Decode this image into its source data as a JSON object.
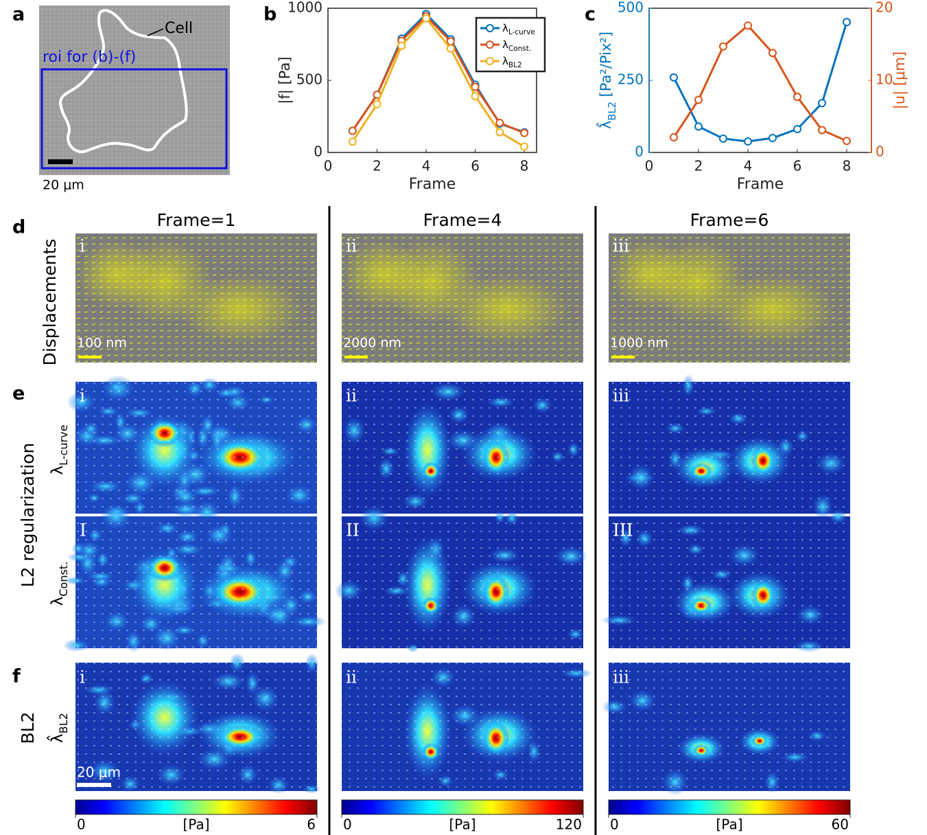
{
  "panel_labels": [
    "a",
    "b",
    "c",
    "d",
    "e",
    "f"
  ],
  "panel_a": {
    "annotation": "Cell",
    "roi_label": "roi for (b)-(f)",
    "scale_bar": "20 μm"
  },
  "chart_data": [
    {
      "type": "line",
      "x": [
        1,
        2,
        3,
        4,
        5,
        6,
        7,
        8
      ],
      "xlabel": "Frame",
      "ylabel": "|f| [Pa]",
      "xlim": [
        0,
        8.5
      ],
      "xticks": [
        0,
        2,
        4,
        6,
        8
      ],
      "ylim": [
        0,
        1000
      ],
      "yticks": [
        0,
        500,
        1000
      ],
      "legend": "upper right",
      "series": [
        {
          "name": "λL-curve",
          "color": "#0072bd",
          "values": [
            150,
            400,
            790,
            960,
            785,
            470,
            200,
            140
          ]
        },
        {
          "name": "λConst.",
          "color": "#d95319",
          "values": [
            150,
            400,
            775,
            945,
            770,
            455,
            205,
            135
          ]
        },
        {
          "name": "λBL2",
          "color": "#edb120",
          "values": [
            75,
            335,
            740,
            930,
            720,
            390,
            140,
            40
          ]
        }
      ]
    },
    {
      "type": "line",
      "x": [
        1,
        2,
        3,
        4,
        5,
        6,
        7,
        8
      ],
      "xlabel": "Frame",
      "ylabel": "λ̂BL2 [Pa²/Pix²]",
      "y2label": "|u| [μm]",
      "xlim": [
        0,
        9
      ],
      "xticks": [
        0,
        2,
        4,
        6,
        8
      ],
      "ylim": [
        0,
        500
      ],
      "yticks": [
        0,
        250,
        500
      ],
      "y2lim": [
        0,
        20
      ],
      "y2ticks": [
        0,
        10,
        20
      ],
      "series": [
        {
          "color": "#0072bd",
          "values": [
            260,
            90,
            48,
            38,
            50,
            81,
            171,
            452
          ]
        },
        {
          "color": "#d95319",
          "axis": "y2",
          "values": [
            2.1,
            7.3,
            14.7,
            17.6,
            13.8,
            7.7,
            3.1,
            1.6
          ]
        }
      ]
    }
  ],
  "column_headers": [
    "Frame=1",
    "Frame=4",
    "Frame=6"
  ],
  "row_labels": {
    "displacements": "Displacements",
    "l2": "L2 regularization",
    "l_curve": "λL-curve",
    "const": "λConst.",
    "bl2": "BL2",
    "bl2_lambda": "λ̂BL2"
  },
  "panel_d": {
    "tags": [
      "i",
      "ii",
      "iii"
    ],
    "scale_labels": [
      "100 nm",
      "2000 nm",
      "1000 nm"
    ]
  },
  "panel_e": {
    "tags_top": [
      "i",
      "ii",
      "iii"
    ],
    "tags_bottom": [
      "I",
      "II",
      "III"
    ]
  },
  "panel_f": {
    "tags": [
      "i",
      "ii",
      "iii"
    ],
    "scale_bar": "20 μm"
  },
  "colorbars": [
    {
      "range": [
        0,
        6
      ],
      "unit": "[Pa]"
    },
    {
      "range": [
        0,
        120
      ],
      "unit": "[Pa]"
    },
    {
      "range": [
        0,
        60
      ],
      "unit": "[Pa]"
    }
  ]
}
